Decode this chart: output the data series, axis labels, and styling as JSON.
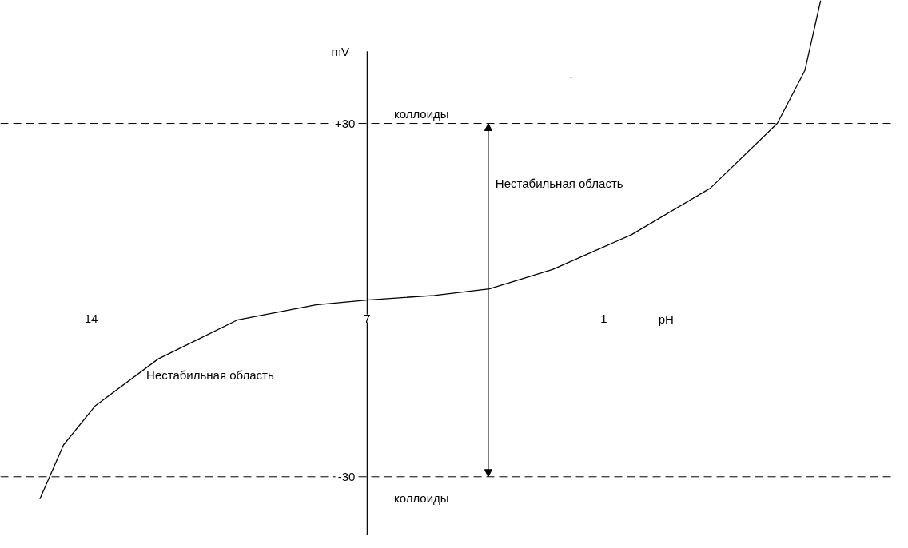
{
  "chart_data": {
    "type": "line",
    "xlabel": "pH",
    "ylabel": "mV",
    "x": [
      15.3,
      14.7,
      13.9,
      12.3,
      10.3,
      8.3,
      7,
      5.3,
      3.9,
      2.3,
      0.3,
      -1.7,
      -3.4,
      -4.1,
      -4.5
    ],
    "series": [
      {
        "color": "#000000",
        "values": [
          -33.8,
          -24.6,
          -18,
          -10,
          -3.4,
          -0.8,
          0,
          0.8,
          1.9,
          5.2,
          11.1,
          19,
          30,
          39,
          50.9
        ]
      }
    ],
    "xlim": [
      16.3,
      -6.4
    ],
    "ylim": [
      -40,
      50.9
    ],
    "xticks": [
      14,
      7,
      1
    ],
    "yticks": [
      {
        "value": 30,
        "label": "+30"
      },
      {
        "value": -30,
        "label": "-30"
      }
    ],
    "ref_lines": [
      {
        "axis": "y",
        "value": 30,
        "label": "коллоиды",
        "line_style": "dashed"
      },
      {
        "axis": "y",
        "value": -30,
        "label": "коллоиды",
        "line_style": "dashed"
      },
      {
        "axis": "x",
        "value": 7,
        "line_style": "solid"
      }
    ],
    "annotations": [
      "Нестабильная область",
      "Нестабильная область",
      "-"
    ],
    "grid": false,
    "line_style": "solid",
    "marker": "none"
  }
}
